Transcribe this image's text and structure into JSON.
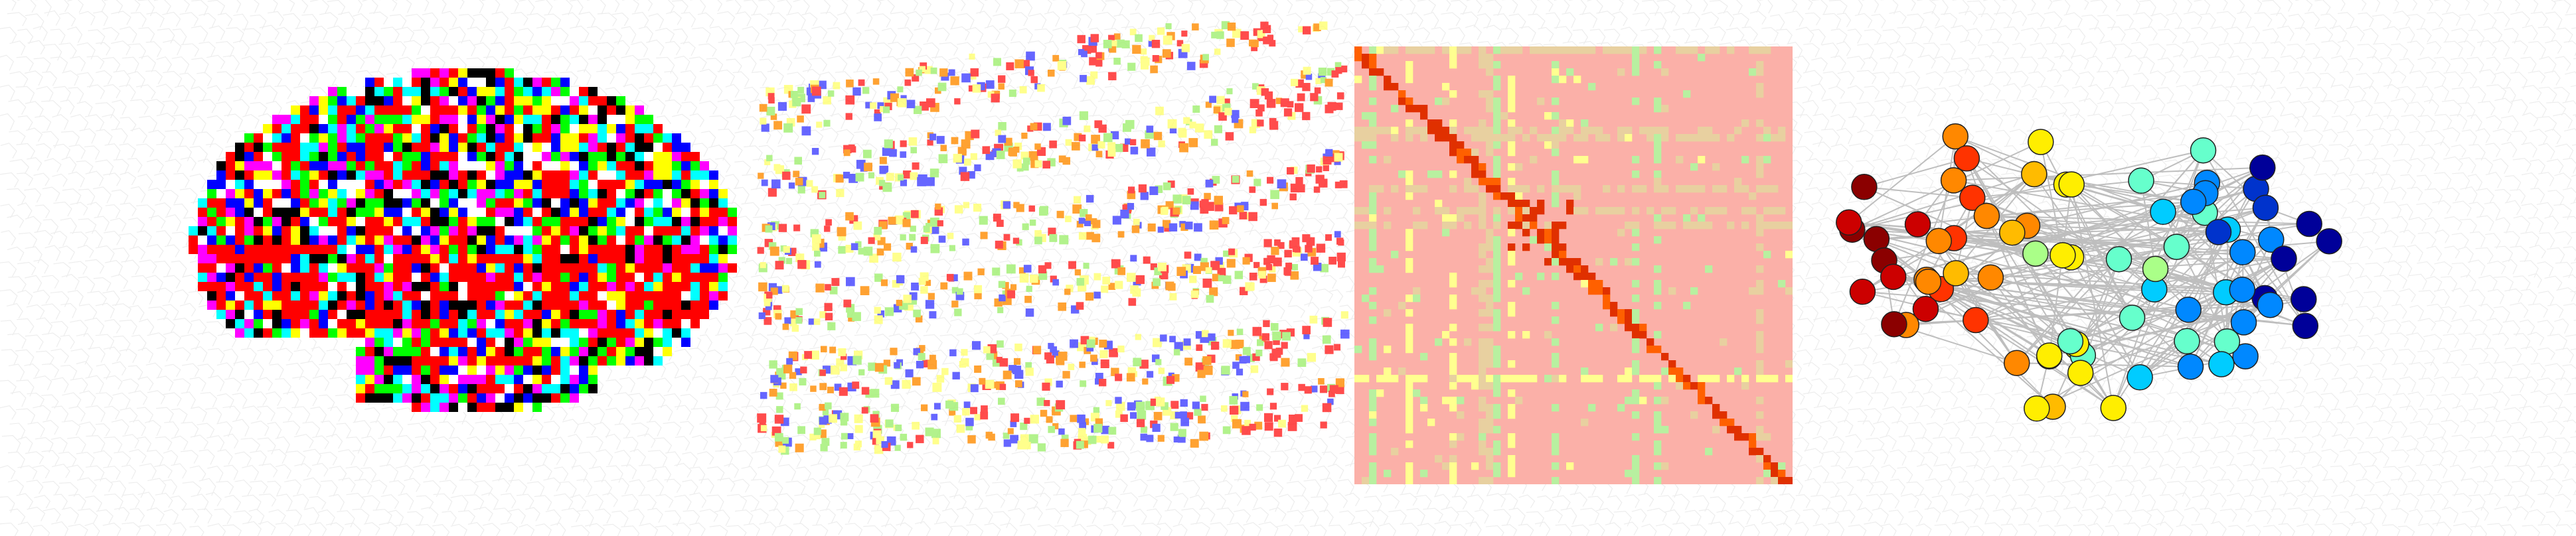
{
  "figure": {
    "panels": [
      {
        "id": "brain",
        "description_name": "brain-voxel-parcellation"
      },
      {
        "id": "points",
        "description_name": "voxel-point-cloud"
      },
      {
        "id": "matrix",
        "description_name": "connectivity-matrix"
      },
      {
        "id": "network",
        "description_name": "brain-network-graph"
      }
    ]
  },
  "colors": {
    "palette": [
      "#000000",
      "#0000ff",
      "#00ffff",
      "#00ff00",
      "#ffff00",
      "#ff0000",
      "#ff00ff",
      "#ffffff"
    ],
    "brain_dominant": "#ff0000",
    "points": [
      "#ff2020",
      "#4040ff",
      "#a0f070",
      "#ffff70",
      "#ff8c00"
    ],
    "matrix_background": "#fbb0a8",
    "matrix_accents": [
      "#ffff90",
      "#b8f0a0",
      "#e8d0a0",
      "#e03000",
      "#ff6000"
    ],
    "network_nodes": [
      "#8b0000",
      "#cc0000",
      "#ff3300",
      "#ff8800",
      "#ffbb00",
      "#ffee00",
      "#aaff88",
      "#66ffcc",
      "#00ccff",
      "#0088ff",
      "#0033cc",
      "#000099"
    ],
    "network_edges": "#b8b8b8",
    "background_pattern": "#ededed"
  },
  "network": {
    "node_count": 80
  }
}
